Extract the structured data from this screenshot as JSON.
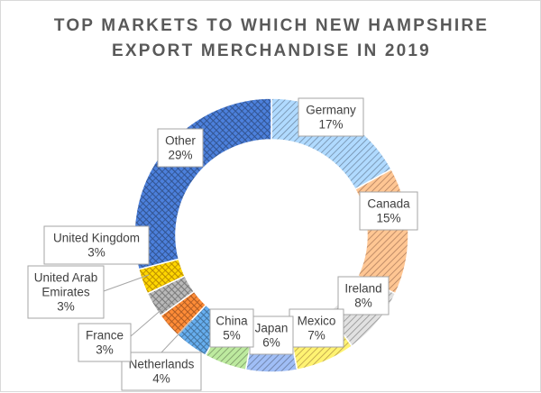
{
  "chart_data": {
    "type": "pie",
    "variant": "doughnut",
    "title": "TOP MARKETS TO WHICH NEW HAMPSHIRE EXPORT MERCHANDISE IN 2019",
    "title_lines": [
      "TOP MARKETS TO WHICH NEW HAMPSHIRE",
      "EXPORT MERCHANDISE IN 2019"
    ],
    "slices": [
      {
        "label_lines": [
          "Germany"
        ],
        "pct_label": "17%",
        "value": 17,
        "color": "#9dc3e6",
        "pattern": "diag"
      },
      {
        "label_lines": [
          "Canada"
        ],
        "pct_label": "15%",
        "value": 15,
        "color": "#f4b183",
        "pattern": "diag"
      },
      {
        "label_lines": [
          "Ireland"
        ],
        "pct_label": "8%",
        "value": 8,
        "color": "#c9c9c9",
        "pattern": "diag"
      },
      {
        "label_lines": [
          "Mexico"
        ],
        "pct_label": "7%",
        "value": 7,
        "color": "#ffd966",
        "pattern": "diag"
      },
      {
        "label_lines": [
          "Japan"
        ],
        "pct_label": "6%",
        "value": 6,
        "color": "#8faadc",
        "pattern": "diag"
      },
      {
        "label_lines": [
          "China"
        ],
        "pct_label": "5%",
        "value": 5,
        "color": "#a9d18e",
        "pattern": "diag"
      },
      {
        "label_lines": [
          "Netherlands"
        ],
        "pct_label": "4%",
        "value": 4,
        "color": "#5b9bd5",
        "pattern": "cross"
      },
      {
        "label_lines": [
          "France"
        ],
        "pct_label": "3%",
        "value": 3,
        "color": "#ed7d31",
        "pattern": "cross"
      },
      {
        "label_lines": [
          "United Arab",
          "Emirates"
        ],
        "pct_label": "3%",
        "value": 3,
        "color": "#a5a5a5",
        "pattern": "cross"
      },
      {
        "label_lines": [
          "United Kingdom"
        ],
        "pct_label": "3%",
        "value": 3,
        "color": "#ffc000",
        "pattern": "cross"
      },
      {
        "label_lines": [
          "Other"
        ],
        "pct_label": "29%",
        "value": 29,
        "color": "#4472c4",
        "pattern": "cross"
      }
    ],
    "legend": "none",
    "start_angle_deg": 0,
    "direction": "clockwise"
  }
}
